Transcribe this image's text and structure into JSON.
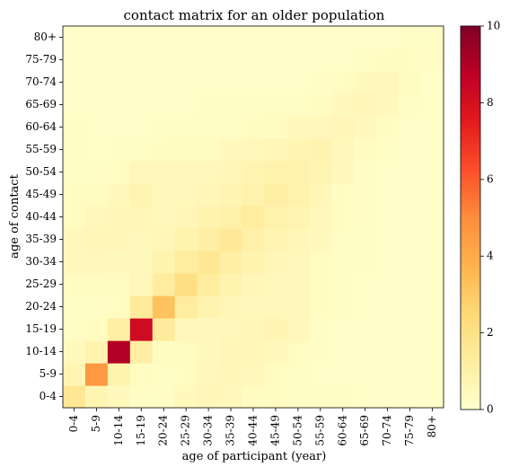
{
  "chart_data": {
    "type": "heatmap",
    "title": "contact matrix for an older population",
    "xlabel": "age of participant (year)",
    "ylabel": "age of contact",
    "x_categories": [
      "0-4",
      "5-9",
      "10-14",
      "15-19",
      "20-24",
      "25-29",
      "30-34",
      "35-39",
      "40-44",
      "45-49",
      "50-54",
      "55-59",
      "60-64",
      "65-69",
      "70-74",
      "75-79",
      "80+"
    ],
    "y_categories": [
      "0-4",
      "5-9",
      "10-14",
      "15-19",
      "20-24",
      "25-29",
      "30-34",
      "35-39",
      "40-44",
      "45-49",
      "50-54",
      "55-59",
      "60-64",
      "65-69",
      "70-74",
      "75-79",
      "80+"
    ],
    "values": [
      [
        1.6,
        0.7,
        0.4,
        0.2,
        0.2,
        0.4,
        0.6,
        0.5,
        0.3,
        0.3,
        0.2,
        0.2,
        0.2,
        0.1,
        0.1,
        0.1,
        0.1
      ],
      [
        0.7,
        4.6,
        0.8,
        0.3,
        0.2,
        0.3,
        0.5,
        0.6,
        0.5,
        0.3,
        0.2,
        0.1,
        0.1,
        0.1,
        0.1,
        0.1,
        0.1
      ],
      [
        0.4,
        0.8,
        9.0,
        1.1,
        0.3,
        0.3,
        0.4,
        0.6,
        0.6,
        0.5,
        0.3,
        0.2,
        0.1,
        0.1,
        0.1,
        0.1,
        0.1
      ],
      [
        0.2,
        0.3,
        1.1,
        8.2,
        1.4,
        0.5,
        0.4,
        0.5,
        0.6,
        0.7,
        0.5,
        0.2,
        0.1,
        0.1,
        0.1,
        0.1,
        0.1
      ],
      [
        0.2,
        0.2,
        0.3,
        1.4,
        3.2,
        1.3,
        0.8,
        0.6,
        0.5,
        0.5,
        0.5,
        0.3,
        0.2,
        0.1,
        0.1,
        0.1,
        0.1
      ],
      [
        0.3,
        0.3,
        0.3,
        0.5,
        1.3,
        2.1,
        1.3,
        0.8,
        0.6,
        0.5,
        0.5,
        0.3,
        0.2,
        0.1,
        0.1,
        0.1,
        0.1
      ],
      [
        0.5,
        0.5,
        0.4,
        0.4,
        0.8,
        1.3,
        1.6,
        1.1,
        0.8,
        0.6,
        0.5,
        0.3,
        0.2,
        0.2,
        0.1,
        0.1,
        0.1
      ],
      [
        0.5,
        0.6,
        0.6,
        0.5,
        0.6,
        0.8,
        1.1,
        1.5,
        1.0,
        0.7,
        0.6,
        0.4,
        0.2,
        0.2,
        0.1,
        0.1,
        0.1
      ],
      [
        0.3,
        0.5,
        0.6,
        0.6,
        0.5,
        0.6,
        0.8,
        1.0,
        1.3,
        0.9,
        0.7,
        0.5,
        0.3,
        0.2,
        0.1,
        0.1,
        0.1
      ],
      [
        0.3,
        0.3,
        0.5,
        0.7,
        0.5,
        0.5,
        0.6,
        0.7,
        0.9,
        1.1,
        0.9,
        0.6,
        0.3,
        0.2,
        0.1,
        0.1,
        0.1
      ],
      [
        0.2,
        0.2,
        0.3,
        0.5,
        0.5,
        0.5,
        0.5,
        0.6,
        0.7,
        0.9,
        0.9,
        0.7,
        0.4,
        0.2,
        0.1,
        0.1,
        0.1
      ],
      [
        0.2,
        0.1,
        0.2,
        0.2,
        0.3,
        0.3,
        0.3,
        0.4,
        0.5,
        0.6,
        0.7,
        0.8,
        0.5,
        0.3,
        0.2,
        0.1,
        0.1
      ],
      [
        0.2,
        0.1,
        0.1,
        0.1,
        0.2,
        0.2,
        0.2,
        0.2,
        0.3,
        0.3,
        0.4,
        0.5,
        0.6,
        0.4,
        0.3,
        0.1,
        0.1
      ],
      [
        0.1,
        0.1,
        0.1,
        0.1,
        0.1,
        0.1,
        0.2,
        0.2,
        0.2,
        0.2,
        0.2,
        0.3,
        0.4,
        0.6,
        0.4,
        0.2,
        0.1
      ],
      [
        0.1,
        0.1,
        0.1,
        0.1,
        0.1,
        0.1,
        0.1,
        0.1,
        0.1,
        0.1,
        0.1,
        0.2,
        0.3,
        0.4,
        0.5,
        0.3,
        0.1
      ],
      [
        0.1,
        0.1,
        0.1,
        0.1,
        0.1,
        0.1,
        0.1,
        0.1,
        0.1,
        0.1,
        0.1,
        0.1,
        0.1,
        0.2,
        0.3,
        0.3,
        0.2
      ],
      [
        0.1,
        0.1,
        0.1,
        0.1,
        0.1,
        0.1,
        0.1,
        0.1,
        0.1,
        0.1,
        0.1,
        0.1,
        0.1,
        0.1,
        0.1,
        0.2,
        0.2
      ]
    ],
    "colorbar": {
      "range": [
        0,
        10
      ],
      "ticks": [
        "0",
        "2",
        "4",
        "6",
        "8",
        "10"
      ],
      "colormap": "YlOrRd"
    },
    "grid": false
  }
}
